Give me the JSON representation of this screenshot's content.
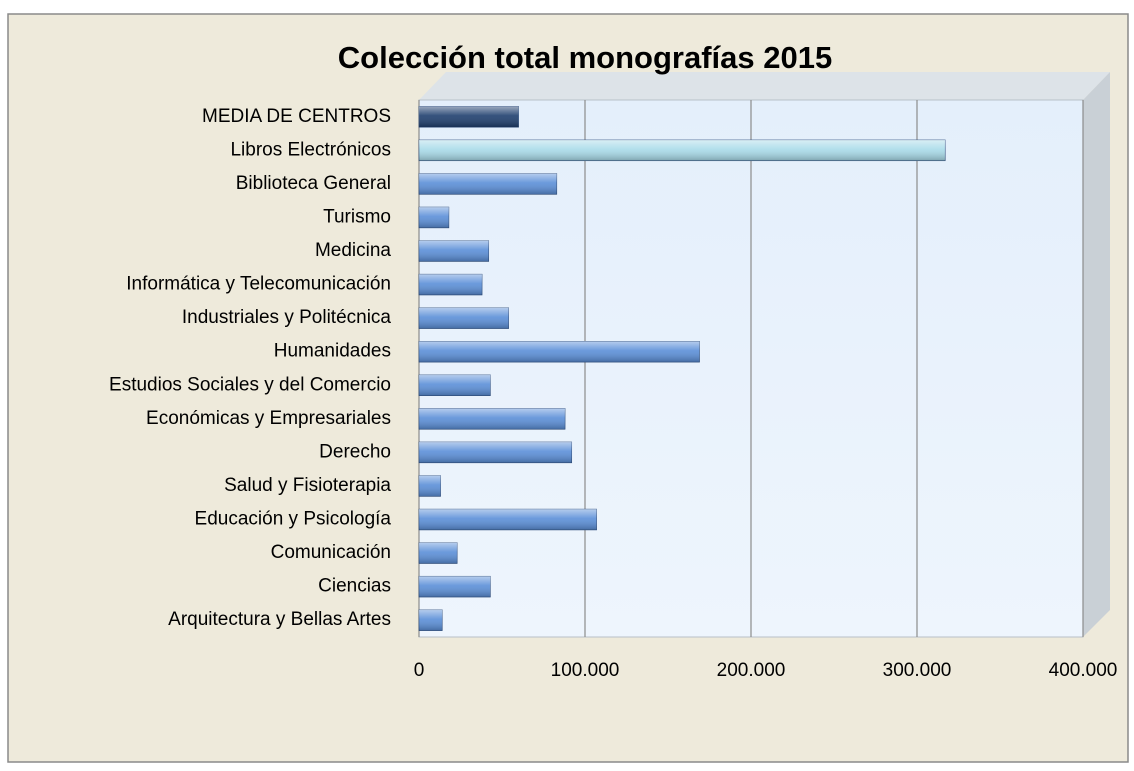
{
  "chart_data": {
    "type": "bar",
    "orientation": "horizontal",
    "title": "Colección total monografías 2015",
    "categories": [
      "MEDIA DE CENTROS",
      "Libros Electrónicos",
      "Biblioteca General",
      "Turismo",
      "Medicina",
      "Informática y Telecomunicación",
      "Industriales y Politécnica",
      "Humanidades",
      "Estudios Sociales y del Comercio",
      "Económicas y Empresariales",
      "Derecho",
      "Salud y Fisioterapia",
      "Educación y Psicología",
      "Comunicación",
      "Ciencias",
      "Arquitectura y Bellas Artes"
    ],
    "values": [
      60000,
      317000,
      83000,
      18000,
      42000,
      38000,
      54000,
      169000,
      43000,
      88000,
      92000,
      13000,
      107000,
      23000,
      43000,
      14000
    ],
    "colors": [
      "#1f3f6e",
      "#a9dbe9",
      "#5b8fd8",
      "#5b8fd8",
      "#5b8fd8",
      "#5b8fd8",
      "#5b8fd8",
      "#5b8fd8",
      "#5b8fd8",
      "#5b8fd8",
      "#5b8fd8",
      "#5b8fd8",
      "#5b8fd8",
      "#5b8fd8",
      "#5b8fd8",
      "#5b8fd8"
    ],
    "xlim": [
      0,
      400000
    ],
    "xticks": [
      0,
      {
        "value": 100000,
        "label": "100.000"
      },
      {
        "value": 200000,
        "label": "200.000"
      },
      {
        "value": 300000,
        "label": "300.000"
      },
      {
        "value": 400000,
        "label": "400.000"
      }
    ],
    "grid": true
  }
}
